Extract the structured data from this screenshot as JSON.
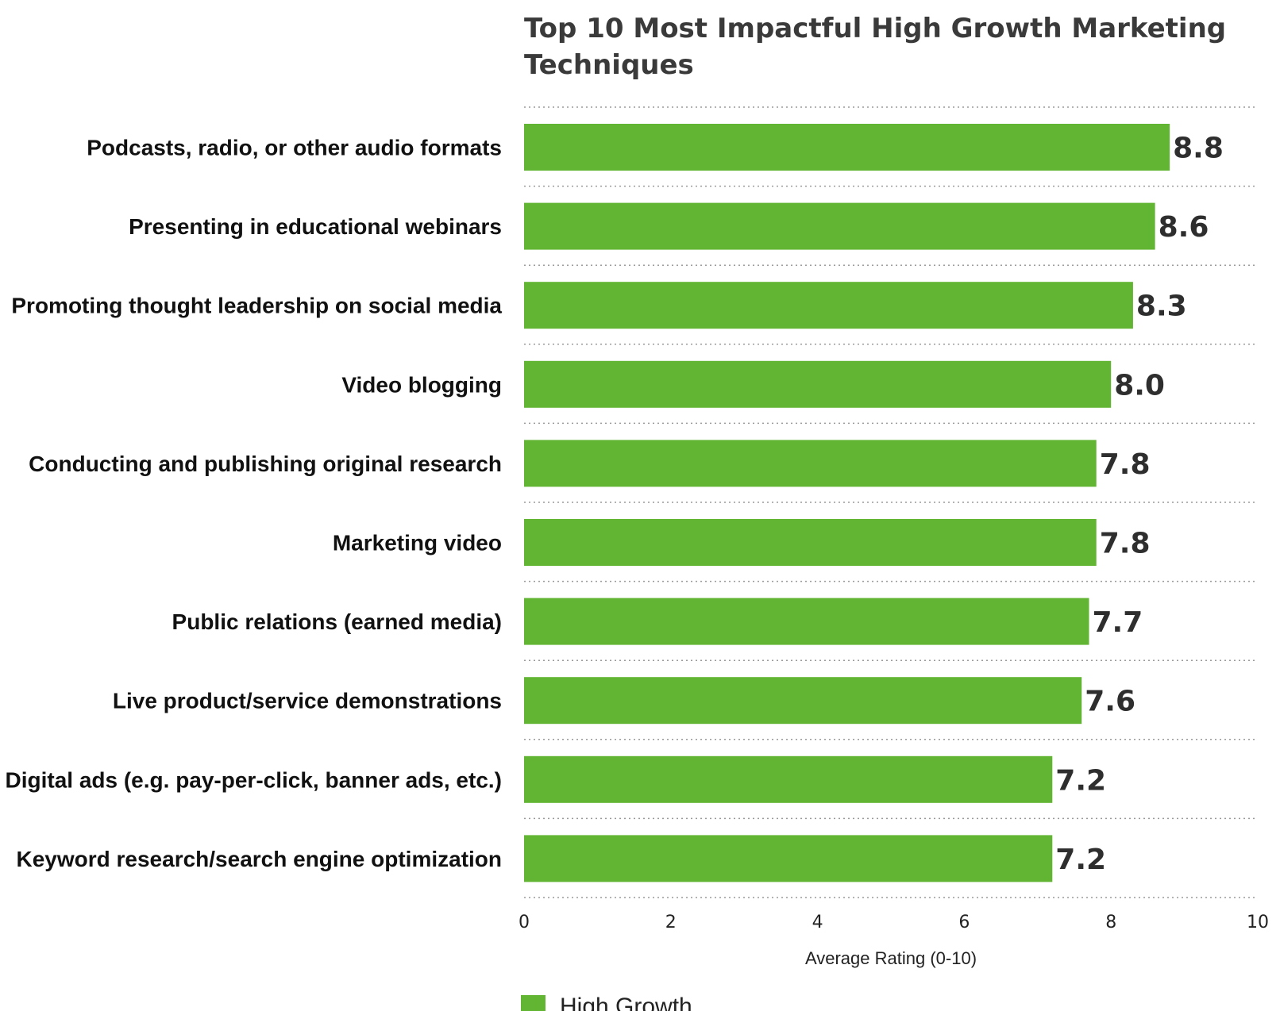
{
  "chart_data": {
    "type": "bar",
    "orientation": "horizontal",
    "title_lines": [
      "Top 10 Most Impactful High Growth Marketing",
      "Techniques"
    ],
    "categories": [
      "Podcasts, radio, or other audio formats",
      "Presenting in educational webinars",
      "Promoting thought leadership on social media",
      "Video blogging",
      "Conducting and publishing original research",
      "Marketing video",
      "Public relations (earned media)",
      "Live product/service demonstrations",
      "Digital ads (e.g. pay-per-click, banner ads, etc.)",
      "Keyword research/search engine optimization"
    ],
    "series": [
      {
        "name": "High Growth",
        "color": "#62b533",
        "values": [
          8.8,
          8.6,
          8.3,
          8.0,
          7.8,
          7.8,
          7.7,
          7.6,
          7.2,
          7.2
        ],
        "value_labels": [
          "8.8",
          "8.6",
          "8.3",
          "8.0",
          "7.8",
          "7.8",
          "7.7",
          "7.6",
          "7.2",
          "7.2"
        ]
      }
    ],
    "xlabel": "Average Rating (0-10)",
    "xlim": [
      0,
      10
    ],
    "xticks": [
      "0",
      "2",
      "4",
      "6",
      "8",
      "10"
    ],
    "grid": true,
    "legend_position": "bottom-left"
  }
}
